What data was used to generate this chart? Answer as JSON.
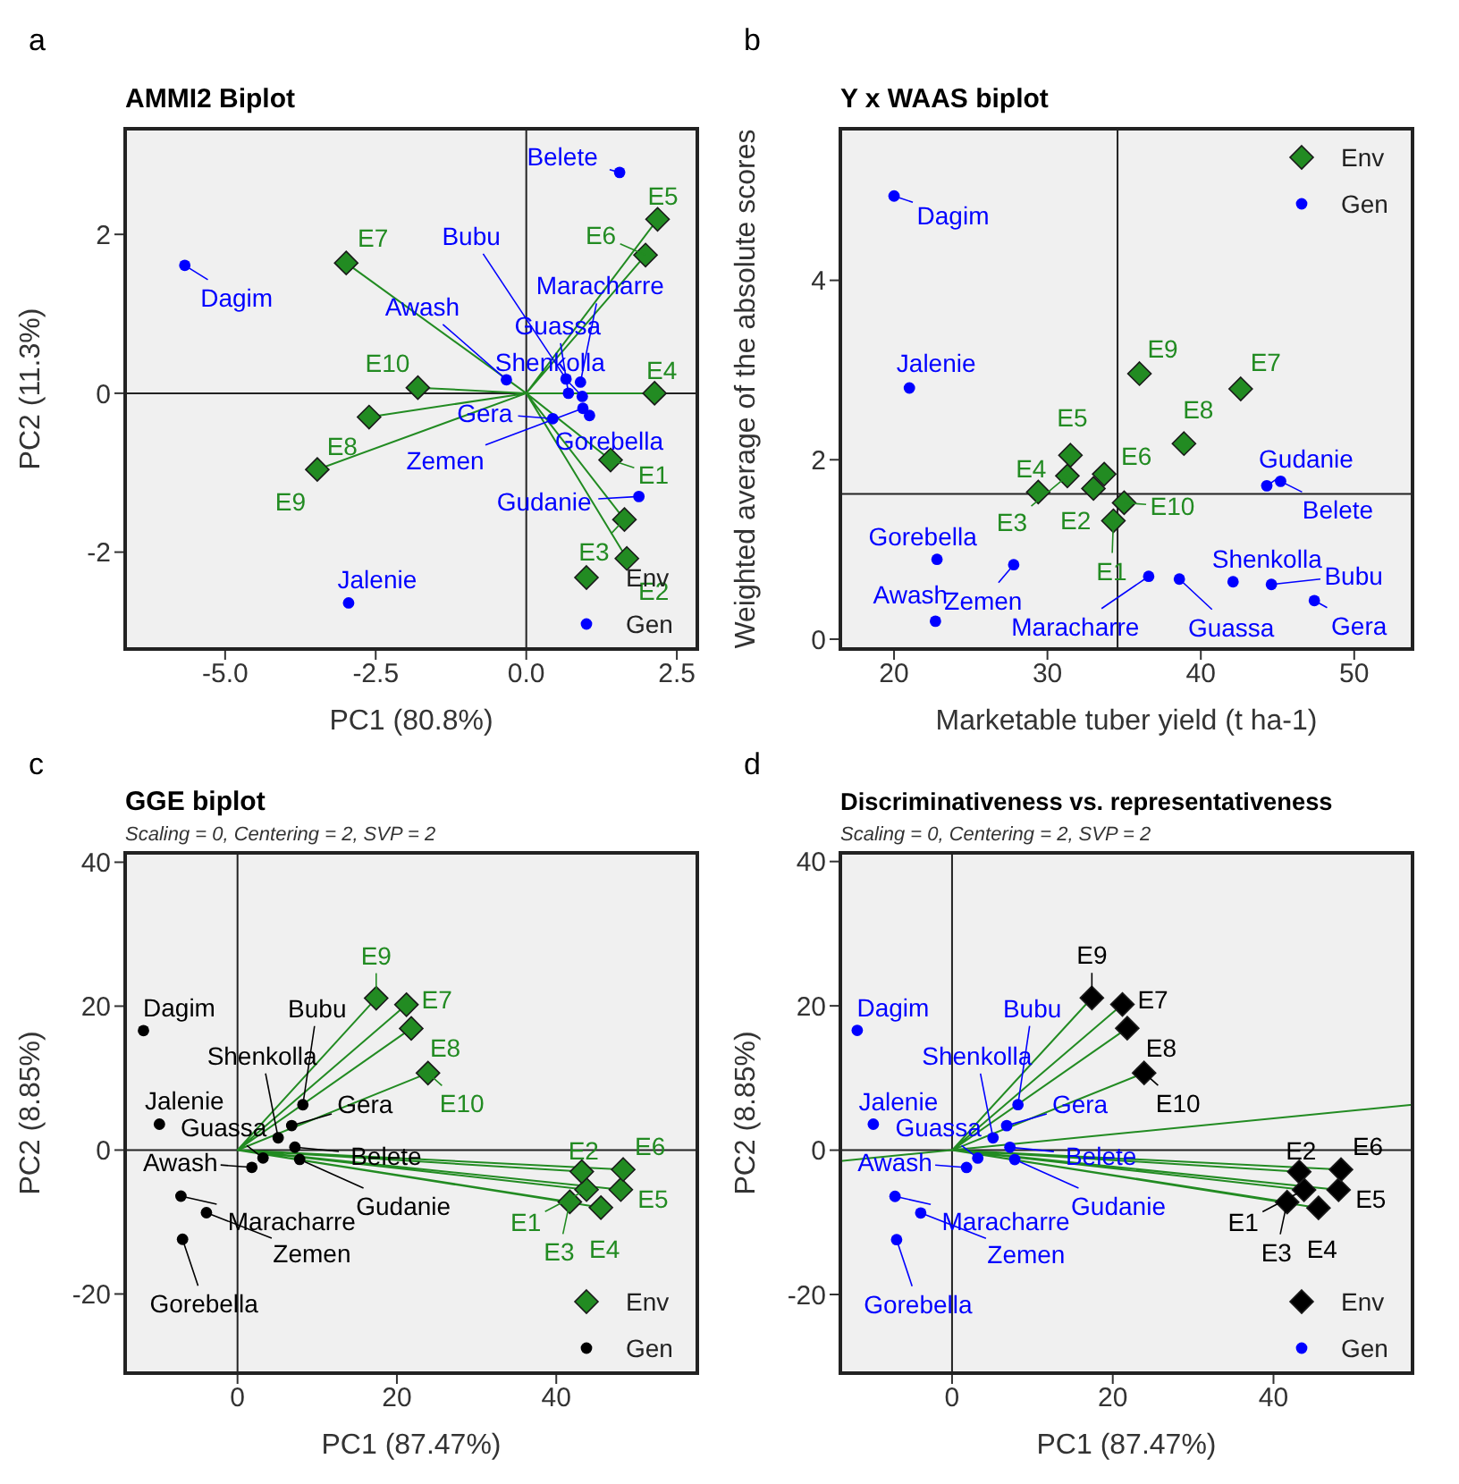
{
  "chart_data": [
    {
      "type": "scatter",
      "title": "AMMI2 Biplot",
      "xlabel": "PC1 (80.8%)",
      "ylabel": "PC2 (11.3%)",
      "xlim": [
        -6.66,
        2.84
      ],
      "ylim": [
        -3.22,
        3.33
      ],
      "xticks": [
        {
          "value": -5,
          "label": "-5.0"
        },
        {
          "value": -2.5,
          "label": "-2.5"
        },
        {
          "value": 0,
          "label": "0.0"
        },
        {
          "value": 2.5,
          "label": "2.5"
        }
      ],
      "yticks": [
        -2,
        0,
        2
      ],
      "legend": "bottom right",
      "ref_lines": [
        {
          "axis": "x",
          "value": 0
        },
        {
          "axis": "y",
          "value": 0
        }
      ],
      "series": [
        {
          "type": "line",
          "color": "#228b22",
          "x": [
            0,
            1.4,
            0,
            1.67,
            0,
            1.63,
            0,
            2.13,
            0,
            2.18,
            0,
            1.98,
            0,
            -2.99,
            0,
            -2.61,
            0,
            -3.47,
            0,
            -1.8
          ],
          "values": [
            0,
            -0.84,
            0,
            -2.08,
            0,
            -1.59,
            0,
            0,
            0,
            2.19,
            0,
            1.74,
            0,
            1.64,
            0,
            -0.3,
            0,
            -0.96,
            0,
            0.07
          ]
        },
        {
          "name": "Env",
          "type": "scatter",
          "marker": "diamond",
          "color": "#228b22",
          "x": [
            1.4,
            1.67,
            1.63,
            2.13,
            2.18,
            1.98,
            -2.99,
            -2.61,
            -3.47,
            -1.8
          ],
          "values": [
            -0.84,
            -2.08,
            -1.59,
            0,
            2.19,
            1.74,
            1.64,
            -0.3,
            -0.96,
            0.07
          ]
        },
        {
          "name": "Gen",
          "type": "scatter",
          "marker": "circle",
          "color": "#0000ff",
          "x": [
            -5.67,
            1.55,
            -2.95,
            -0.33,
            0.66,
            0.9,
            0.7,
            0.93,
            0.44,
            0.94,
            1.05,
            1.87
          ],
          "values": [
            1.61,
            2.78,
            -2.64,
            0.17,
            0.18,
            0.14,
            0.0,
            -0.04,
            -0.32,
            -0.19,
            -0.28,
            -1.3
          ]
        }
      ],
      "annotations": [
        "a",
        {
          "text": "E1",
          "x": 1.4,
          "y": -0.84
        },
        {
          "text": "E2",
          "x": 1.67,
          "y": -2.08
        },
        {
          "text": "E3",
          "x": 1.63,
          "y": -1.59
        },
        {
          "text": "E4",
          "x": 2.13,
          "y": 0
        },
        {
          "text": "E5",
          "x": 2.18,
          "y": 2.19
        },
        {
          "text": "E6",
          "x": 1.98,
          "y": 1.74
        },
        {
          "text": "E7",
          "x": -2.99,
          "y": 1.64
        },
        {
          "text": "E8",
          "x": -2.61,
          "y": -0.3
        },
        {
          "text": "E9",
          "x": -3.47,
          "y": -0.96
        },
        {
          "text": "E10",
          "x": -1.8,
          "y": 0.07
        },
        {
          "text": "Dagim",
          "x": -5.67,
          "y": 1.61
        },
        {
          "text": "Belete",
          "x": 1.55,
          "y": 2.78
        },
        {
          "text": "Jalenie",
          "x": -2.95,
          "y": -2.64
        },
        {
          "text": "Awash",
          "x": -0.33,
          "y": 0.17
        },
        {
          "text": "Bubu",
          "x": 0.66,
          "y": 0.18
        },
        {
          "text": "Maracharre",
          "x": 0.9,
          "y": 0.14
        },
        {
          "text": "Guassa",
          "x": 0.7,
          "y": 0.0
        },
        {
          "text": "Shenkolla",
          "x": 0.93,
          "y": -0.04
        },
        {
          "text": "Gera",
          "x": 0.44,
          "y": -0.32
        },
        {
          "text": "Zemen",
          "x": 0.94,
          "y": -0.19
        },
        {
          "text": "Gorebella",
          "x": 1.05,
          "y": -0.28
        },
        {
          "text": "Gudanie",
          "x": 1.87,
          "y": -1.3
        }
      ]
    },
    {
      "type": "scatter",
      "title": "Y x WAAS biplot",
      "xlabel": "Marketable tuber yield (t ha-1)",
      "ylabel": "Weighted average of the absolute scores",
      "xlim": [
        16.5,
        53.8
      ],
      "ylim": [
        -0.11,
        5.69
      ],
      "xticks": [
        20,
        30,
        40,
        50
      ],
      "yticks": [
        0,
        2,
        4
      ],
      "legend": "top right",
      "ref_lines": [
        {
          "axis": "x",
          "value": 34.57
        },
        {
          "axis": "y",
          "value": 1.62
        }
      ],
      "series": [
        {
          "name": "Env",
          "type": "scatter",
          "marker": "diamond",
          "color": "#228b22",
          "x": [
            34.3,
            33.0,
            31.3,
            29.4,
            31.5,
            33.7,
            42.6,
            38.9,
            36.0,
            35.0
          ],
          "values": [
            1.32,
            1.68,
            1.82,
            1.64,
            2.05,
            1.84,
            2.79,
            2.18,
            2.96,
            1.52
          ]
        },
        {
          "name": "Gen",
          "type": "scatter",
          "marker": "circle",
          "color": "#0000ff",
          "x": [
            20.0,
            21.0,
            22.8,
            27.8,
            22.7,
            36.6,
            38.6,
            42.1,
            44.6,
            47.4,
            44.3,
            45.2
          ],
          "values": [
            4.94,
            2.8,
            0.89,
            0.83,
            0.2,
            0.7,
            0.67,
            0.64,
            0.61,
            0.43,
            1.71,
            1.76
          ]
        }
      ],
      "annotations": [
        "b",
        {
          "text": "E1",
          "x": 34.3,
          "y": 1.32
        },
        {
          "text": "E2",
          "x": 33.0,
          "y": 1.68
        },
        {
          "text": "E3",
          "x": 31.3,
          "y": 1.82
        },
        {
          "text": "E4",
          "x": 29.4,
          "y": 1.64
        },
        {
          "text": "E5",
          "x": 31.5,
          "y": 2.05
        },
        {
          "text": "E6",
          "x": 33.7,
          "y": 1.84
        },
        {
          "text": "E7",
          "x": 42.6,
          "y": 2.79
        },
        {
          "text": "E8",
          "x": 38.9,
          "y": 2.18
        },
        {
          "text": "E9",
          "x": 36.0,
          "y": 2.96
        },
        {
          "text": "E10",
          "x": 35.0,
          "y": 1.52
        },
        {
          "text": "Dagim",
          "x": 20.0,
          "y": 4.94
        },
        {
          "text": "Jalenie",
          "x": 21.0,
          "y": 2.8
        },
        {
          "text": "Gorebella",
          "x": 22.8,
          "y": 0.89
        },
        {
          "text": "Zemen",
          "x": 27.8,
          "y": 0.83
        },
        {
          "text": "Awash",
          "x": 22.7,
          "y": 0.2
        },
        {
          "text": "Maracharre",
          "x": 36.6,
          "y": 0.7
        },
        {
          "text": "Guassa",
          "x": 38.6,
          "y": 0.67
        },
        {
          "text": "Shenkolla",
          "x": 42.1,
          "y": 0.64
        },
        {
          "text": "Bubu",
          "x": 44.6,
          "y": 0.61
        },
        {
          "text": "Gera",
          "x": 47.4,
          "y": 0.43
        },
        {
          "text": "Gudanie",
          "x": 44.3,
          "y": 1.71
        },
        {
          "text": "Belete",
          "x": 45.2,
          "y": 1.76
        }
      ]
    },
    {
      "type": "scatter",
      "title": "GGE biplot",
      "subtitle": "Scaling = 0, Centering = 2, SVP = 2",
      "xlabel": "PC1 (87.47%)",
      "ylabel": "PC2 (8.85%)",
      "xlim": [
        -14.1,
        57.7
      ],
      "ylim": [
        -31,
        41.3
      ],
      "xticks": [
        0,
        20,
        40
      ],
      "yticks": [
        -20,
        0,
        20,
        40
      ],
      "legend": "bottom right",
      "ref_lines": [
        {
          "axis": "x",
          "value": 0
        },
        {
          "axis": "y",
          "value": 0
        }
      ],
      "series": [
        {
          "type": "line",
          "color": "#228b22",
          "x": [
            0,
            43.8,
            0,
            43.2,
            0,
            41.7,
            0,
            45.6,
            0,
            48.1,
            0,
            48.4,
            0,
            21.2,
            0,
            21.8,
            0,
            17.4,
            0,
            23.9
          ],
          "values": [
            0,
            -5.5,
            0,
            -3.0,
            0,
            -7.2,
            0,
            -8.0,
            0,
            -5.5,
            0,
            -2.7,
            0,
            20.2,
            0,
            16.9,
            0,
            21.1,
            0,
            10.7
          ]
        },
        {
          "name": "Env",
          "type": "scatter",
          "marker": "diamond",
          "color": "#228b22",
          "x": [
            43.8,
            43.2,
            41.7,
            45.6,
            48.1,
            48.4,
            21.2,
            21.8,
            17.4,
            23.9
          ],
          "values": [
            -5.5,
            -3.0,
            -7.2,
            -8.0,
            -5.5,
            -2.7,
            20.2,
            16.9,
            21.1,
            10.7
          ]
        },
        {
          "name": "Gen",
          "type": "scatter",
          "marker": "circle",
          "color": "#000000",
          "x": [
            -11.8,
            -9.8,
            1.8,
            -7.1,
            -3.9,
            -6.9,
            8.2,
            5.1,
            6.8,
            3.2,
            7.2,
            7.8
          ],
          "values": [
            16.6,
            3.6,
            -2.4,
            -6.4,
            -8.7,
            -12.4,
            6.3,
            1.7,
            3.4,
            -1.1,
            0.4,
            -1.3
          ]
        }
      ],
      "annotations": [
        "c",
        {
          "text": "E1",
          "x": 43.8,
          "y": -5.5
        },
        {
          "text": "E2",
          "x": 43.2,
          "y": -3.0
        },
        {
          "text": "E3",
          "x": 41.7,
          "y": -7.2
        },
        {
          "text": "E4",
          "x": 45.6,
          "y": -8.0
        },
        {
          "text": "E5",
          "x": 48.1,
          "y": -5.5
        },
        {
          "text": "E6",
          "x": 48.4,
          "y": -2.7
        },
        {
          "text": "E7",
          "x": 21.2,
          "y": 20.2
        },
        {
          "text": "E8",
          "x": 21.8,
          "y": 16.9
        },
        {
          "text": "E9",
          "x": 17.4,
          "y": 21.1
        },
        {
          "text": "E10",
          "x": 23.9,
          "y": 10.7
        },
        {
          "text": "Dagim",
          "x": -11.8,
          "y": 16.6
        },
        {
          "text": "Jalenie",
          "x": -9.8,
          "y": 3.6
        },
        {
          "text": "Awash",
          "x": 1.8,
          "y": -2.4
        },
        {
          "text": "Maracharre",
          "x": -7.1,
          "y": -6.4
        },
        {
          "text": "Zemen",
          "x": -3.9,
          "y": -8.7
        },
        {
          "text": "Gorebella",
          "x": -6.9,
          "y": -12.4
        },
        {
          "text": "Bubu",
          "x": 8.2,
          "y": 6.3
        },
        {
          "text": "Shenkolla",
          "x": 5.1,
          "y": 1.7
        },
        {
          "text": "Gera",
          "x": 6.8,
          "y": 3.4
        },
        {
          "text": "Guassa",
          "x": 3.2,
          "y": -1.1
        },
        {
          "text": "Belete",
          "x": 7.2,
          "y": 0.4
        },
        {
          "text": "Gudanie",
          "x": 7.8,
          "y": -1.3
        }
      ]
    },
    {
      "type": "scatter",
      "title": "Discriminativeness vs. representativeness",
      "subtitle": "Scaling = 0, Centering = 2, SVP = 2",
      "xlabel": "PC1 (87.47%)",
      "ylabel": "PC2 (8.85%)",
      "xlim": [
        -13.9,
        57.3
      ],
      "ylim": [
        -30.9,
        41.2
      ],
      "xticks": [
        0,
        20,
        40
      ],
      "yticks": [
        -20,
        0,
        20,
        40
      ],
      "legend": "bottom right",
      "ref_lines": [
        {
          "axis": "x",
          "value": 0
        },
        {
          "axis": "y",
          "value": 0
        }
      ],
      "series": [
        {
          "type": "line",
          "color": "#228b22",
          "x": [
            0,
            43.8,
            0,
            43.2,
            0,
            41.7,
            0,
            45.6,
            0,
            48.1,
            0,
            48.4,
            0,
            21.2,
            0,
            21.8,
            0,
            17.4,
            0,
            23.9
          ],
          "values": [
            0,
            -5.5,
            0,
            -3.0,
            0,
            -7.2,
            0,
            -8.0,
            0,
            -5.5,
            0,
            -2.7,
            0,
            20.2,
            0,
            16.9,
            0,
            21.1,
            0,
            10.7
          ]
        },
        {
          "type": "line",
          "color": "#228b22",
          "x": [
            -13.9,
            57.3
          ],
          "values": [
            -1.5,
            6.3
          ]
        },
        {
          "name": "Env",
          "type": "scatter",
          "marker": "diamond",
          "color": "#000000",
          "x": [
            43.8,
            43.2,
            41.7,
            45.6,
            48.1,
            48.4,
            21.2,
            21.8,
            17.4,
            23.9
          ],
          "values": [
            -5.5,
            -3.0,
            -7.2,
            -8.0,
            -5.5,
            -2.7,
            20.2,
            16.9,
            21.1,
            10.7
          ]
        },
        {
          "name": "Gen",
          "type": "scatter",
          "marker": "circle",
          "color": "#0000ff",
          "x": [
            -11.8,
            -9.8,
            1.8,
            -7.1,
            -3.9,
            -6.9,
            8.2,
            5.1,
            6.8,
            3.2,
            7.2,
            7.8
          ],
          "values": [
            16.6,
            3.6,
            -2.4,
            -6.4,
            -8.7,
            -12.4,
            6.3,
            1.7,
            3.4,
            -1.1,
            0.4,
            -1.3
          ]
        }
      ],
      "annotations": [
        "d",
        {
          "text": "E1",
          "x": 43.8,
          "y": -5.5
        },
        {
          "text": "E2",
          "x": 43.2,
          "y": -3.0
        },
        {
          "text": "E3",
          "x": 41.7,
          "y": -7.2
        },
        {
          "text": "E4",
          "x": 45.6,
          "y": -8.0
        },
        {
          "text": "E5",
          "x": 48.1,
          "y": -5.5
        },
        {
          "text": "E6",
          "x": 48.4,
          "y": -2.7
        },
        {
          "text": "E7",
          "x": 21.2,
          "y": 20.2
        },
        {
          "text": "E8",
          "x": 21.8,
          "y": 16.9
        },
        {
          "text": "E9",
          "x": 17.4,
          "y": 21.1
        },
        {
          "text": "E10",
          "x": 23.9,
          "y": 10.7
        },
        {
          "text": "Dagim",
          "x": -11.8,
          "y": 16.6
        },
        {
          "text": "Jalenie",
          "x": -9.8,
          "y": 3.6
        },
        {
          "text": "Awash",
          "x": 1.8,
          "y": -2.4
        },
        {
          "text": "Maracharre",
          "x": -7.1,
          "y": -6.4
        },
        {
          "text": "Zemen",
          "x": -3.9,
          "y": -8.7
        },
        {
          "text": "Gorebella",
          "x": -6.9,
          "y": -12.4
        },
        {
          "text": "Bubu",
          "x": 8.2,
          "y": 6.3
        },
        {
          "text": "Shenkolla",
          "x": 5.1,
          "y": 1.7
        },
        {
          "text": "Gera",
          "x": 6.8,
          "y": 3.4
        },
        {
          "text": "Guassa",
          "x": 3.2,
          "y": -1.1
        },
        {
          "text": "Belete",
          "x": 7.2,
          "y": 0.4
        },
        {
          "text": "Gudanie",
          "x": 7.8,
          "y": -1.3
        }
      ]
    }
  ]
}
